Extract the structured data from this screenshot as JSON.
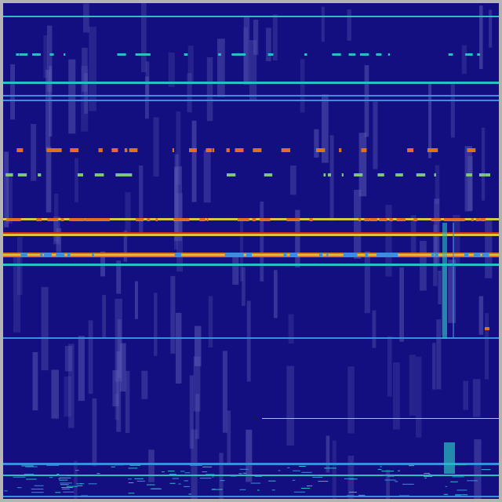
{
  "colors": {
    "background": "#140f80",
    "frame": "#b4b4b4",
    "streak": "#5a5ab4",
    "cyan": "#2ac0c0",
    "lightblue": "#3a8ee0",
    "green": "#7ac87a",
    "yellow": "#d8c840",
    "orange": "#e07020",
    "red": "#d03020"
  }
}
